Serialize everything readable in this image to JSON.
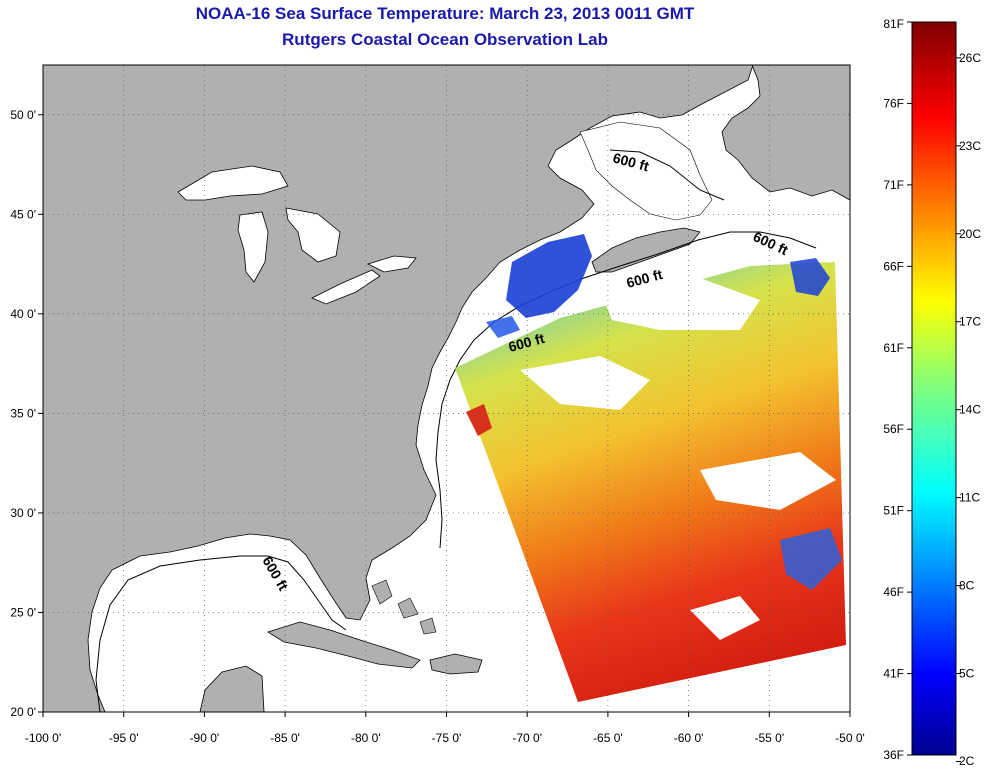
{
  "title": "NOAA-16 Sea Surface Temperature:  March 23, 2013 0011 GMT",
  "subtitle": "Rutgers Coastal Ocean Observation Lab",
  "map": {
    "lon_range": [
      -100,
      -50
    ],
    "lat_range": [
      20,
      52.5
    ],
    "lon_ticks": [
      {
        "v": -100,
        "label": "-100 0'"
      },
      {
        "v": -95,
        "label": "-95 0'"
      },
      {
        "v": -90,
        "label": "-90 0'"
      },
      {
        "v": -85,
        "label": "-85 0'"
      },
      {
        "v": -80,
        "label": "-80 0'"
      },
      {
        "v": -75,
        "label": "-75 0'"
      },
      {
        "v": -70,
        "label": "-70 0'"
      },
      {
        "v": -65,
        "label": "-65 0'"
      },
      {
        "v": -60,
        "label": "-60 0'"
      },
      {
        "v": -55,
        "label": "-55 0'"
      },
      {
        "v": -50,
        "label": "-50 0'"
      }
    ],
    "lat_ticks": [
      {
        "v": 20,
        "label": "20 0'"
      },
      {
        "v": 25,
        "label": "25 0'"
      },
      {
        "v": 30,
        "label": "30 0'"
      },
      {
        "v": 35,
        "label": "35 0'"
      },
      {
        "v": 40,
        "label": "40 0'"
      },
      {
        "v": 45,
        "label": "45 0'"
      },
      {
        "v": 50,
        "label": "50 0'"
      }
    ],
    "contour_label": "600 ft",
    "colors": {
      "land": "#b0b0b0",
      "ocean": "#ffffff",
      "grid": "#555555"
    }
  },
  "colorbar": {
    "f_labels": [
      "81F",
      "76F",
      "71F",
      "66F",
      "61F",
      "56F",
      "51F",
      "46F",
      "41F",
      "36F"
    ],
    "c_labels": [
      "26C",
      "23C",
      "20C",
      "17C",
      "14C",
      "11C",
      "8C",
      "5C",
      "2C"
    ],
    "f_range": [
      36,
      81
    ],
    "c_ticks": [
      26,
      23,
      20,
      17,
      14,
      11,
      8,
      5,
      2
    ]
  }
}
